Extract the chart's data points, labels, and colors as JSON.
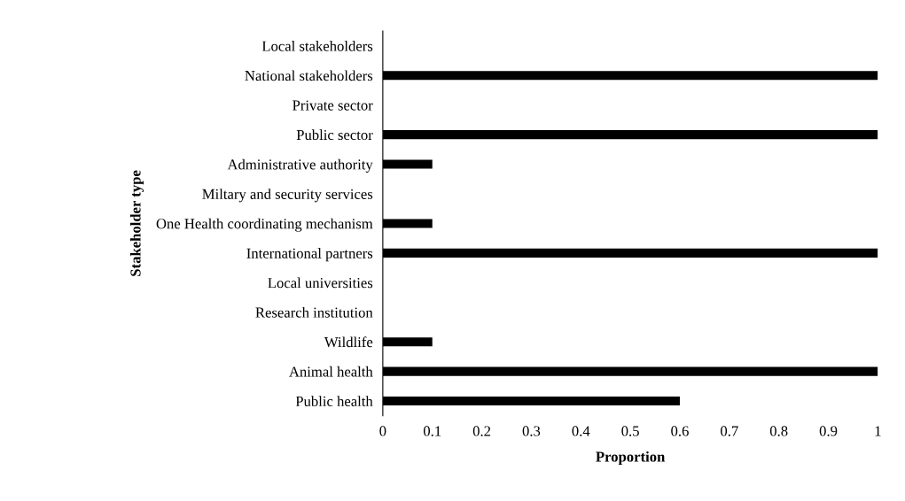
{
  "chart_data": {
    "type": "bar",
    "orientation": "horizontal",
    "xlabel": "Proportion",
    "ylabel": "Stakeholder type",
    "categories": [
      "Local stakeholders",
      "National stakeholders",
      "Private sector",
      "Public sector",
      "Administrative authority",
      "Miltary and security services",
      "One Health coordinating mechanism",
      "International partners",
      "Local universities",
      "Research institution",
      "Wildlife",
      "Animal health",
      "Public health"
    ],
    "values": [
      0,
      1,
      0,
      1,
      0.1,
      0,
      0.1,
      1,
      0,
      0,
      0.1,
      1,
      0.6
    ],
    "color": "#000000",
    "xlim": [
      0,
      1
    ],
    "xticks": [
      0,
      0.1,
      0.2,
      0.3,
      0.4,
      0.5,
      0.6,
      0.7,
      0.8,
      0.9,
      1
    ],
    "grid": false,
    "legend": false
  }
}
